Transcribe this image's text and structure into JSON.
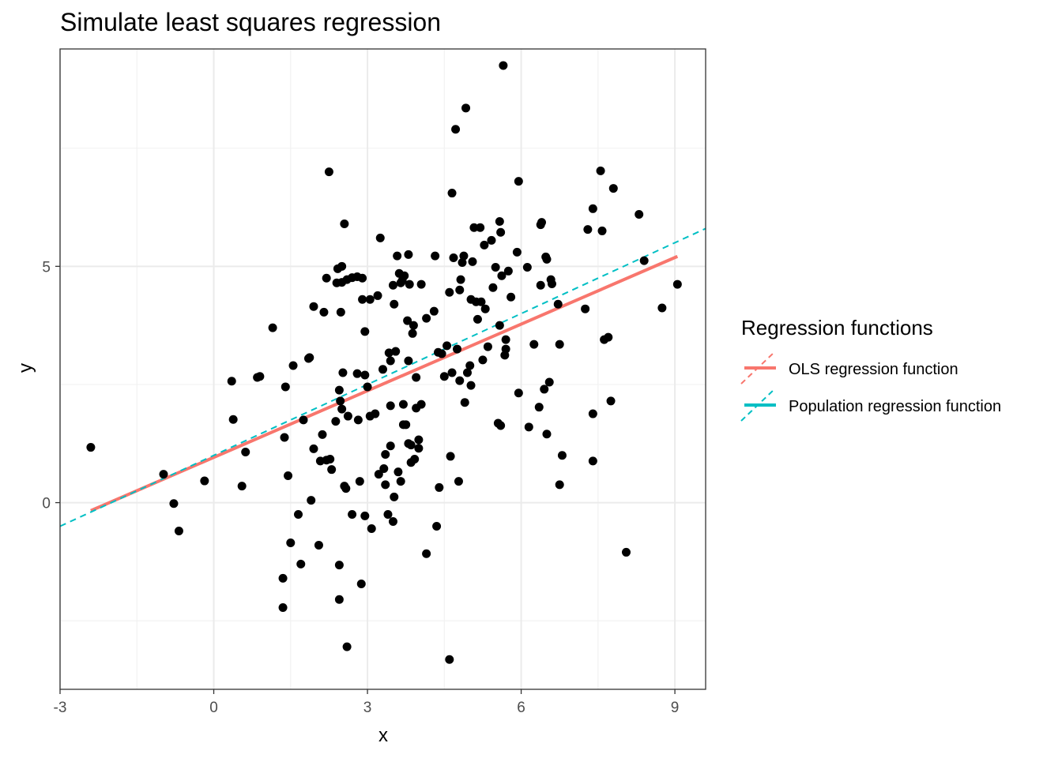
{
  "chart_data": {
    "type": "scatter",
    "title": "Simulate least squares regression",
    "xlabel": "x",
    "ylabel": "y",
    "xlim": [
      -3,
      9.6
    ],
    "ylim": [
      -3.95,
      9.6
    ],
    "x_ticks": [
      -3,
      0,
      3,
      6,
      9
    ],
    "x_tick_labels": [
      "-3",
      "0",
      "3",
      "6",
      "9"
    ],
    "y_ticks": [
      0,
      5
    ],
    "y_tick_labels": [
      "0",
      "5"
    ],
    "x_minor_ticks": [
      -1.5,
      1.5,
      4.5,
      7.5
    ],
    "y_minor_ticks": [
      -2.5,
      2.5,
      7.5
    ],
    "grid": true,
    "legend": {
      "title": "Regression functions",
      "position": "right",
      "entries": [
        {
          "label": "OLS regression function",
          "color": "#F8766D"
        },
        {
          "label": "Population regression function",
          "color": "#00BFC4"
        }
      ]
    },
    "lines": [
      {
        "name": "OLS regression function",
        "color": "#F8766D",
        "style": "solid",
        "x": [
          -2.4,
          9.05
        ],
        "y": [
          -0.17,
          5.21
        ]
      },
      {
        "name": "Population regression function",
        "color": "#00BFC4",
        "style": "dashed",
        "x": [
          -3.0,
          9.6
        ],
        "y": [
          -0.5,
          5.8
        ]
      }
    ],
    "points": [
      [
        -2.4,
        1.17
      ],
      [
        -0.98,
        0.6
      ],
      [
        -0.78,
        -0.02
      ],
      [
        -0.68,
        -0.6
      ],
      [
        -0.18,
        0.46
      ],
      [
        0.35,
        2.57
      ],
      [
        0.38,
        1.76
      ],
      [
        0.55,
        0.35
      ],
      [
        0.62,
        1.07
      ],
      [
        0.85,
        2.65
      ],
      [
        0.9,
        2.67
      ],
      [
        1.15,
        3.7
      ],
      [
        1.38,
        1.38
      ],
      [
        1.35,
        -1.6
      ],
      [
        1.35,
        -2.22
      ],
      [
        1.4,
        2.45
      ],
      [
        1.45,
        0.57
      ],
      [
        1.5,
        -0.85
      ],
      [
        1.55,
        2.9
      ],
      [
        1.65,
        -0.25
      ],
      [
        1.7,
        -1.3
      ],
      [
        1.75,
        1.75
      ],
      [
        1.85,
        3.05
      ],
      [
        1.87,
        3.07
      ],
      [
        1.9,
        0.05
      ],
      [
        1.95,
        4.15
      ],
      [
        1.95,
        1.14
      ],
      [
        2.05,
        -0.9
      ],
      [
        2.08,
        0.88
      ],
      [
        2.12,
        1.44
      ],
      [
        2.15,
        4.03
      ],
      [
        2.2,
        0.9
      ],
      [
        2.2,
        4.75
      ],
      [
        2.25,
        7.0
      ],
      [
        2.27,
        0.92
      ],
      [
        2.3,
        0.7
      ],
      [
        2.38,
        1.72
      ],
      [
        2.4,
        4.65
      ],
      [
        2.42,
        4.95
      ],
      [
        2.45,
        2.38
      ],
      [
        2.45,
        -2.05
      ],
      [
        2.45,
        -1.32
      ],
      [
        2.47,
        2.15
      ],
      [
        2.5,
        4.66
      ],
      [
        2.5,
        5.0
      ],
      [
        2.48,
        4.03
      ],
      [
        2.52,
        2.75
      ],
      [
        2.5,
        1.98
      ],
      [
        2.55,
        0.35
      ],
      [
        2.55,
        5.9
      ],
      [
        2.58,
        0.3
      ],
      [
        2.6,
        -3.05
      ],
      [
        2.6,
        4.72
      ],
      [
        2.62,
        1.83
      ],
      [
        2.7,
        4.76
      ],
      [
        2.7,
        -0.25
      ],
      [
        2.8,
        2.73
      ],
      [
        2.8,
        4.78
      ],
      [
        2.82,
        1.75
      ],
      [
        2.85,
        0.45
      ],
      [
        2.88,
        -1.72
      ],
      [
        2.9,
        4.75
      ],
      [
        2.9,
        4.3
      ],
      [
        2.95,
        2.7
      ],
      [
        2.95,
        3.62
      ],
      [
        2.95,
        -0.28
      ],
      [
        3.0,
        2.45
      ],
      [
        3.05,
        4.3
      ],
      [
        3.05,
        1.83
      ],
      [
        3.08,
        -0.55
      ],
      [
        3.15,
        1.88
      ],
      [
        3.2,
        4.38
      ],
      [
        3.22,
        0.6
      ],
      [
        3.25,
        5.6
      ],
      [
        3.3,
        2.82
      ],
      [
        3.32,
        0.72
      ],
      [
        3.35,
        1.02
      ],
      [
        3.35,
        0.38
      ],
      [
        3.4,
        -0.25
      ],
      [
        3.42,
        3.17
      ],
      [
        3.45,
        3.0
      ],
      [
        3.45,
        2.05
      ],
      [
        3.45,
        1.2
      ],
      [
        3.5,
        -0.4
      ],
      [
        3.5,
        4.6
      ],
      [
        3.52,
        0.12
      ],
      [
        3.52,
        4.2
      ],
      [
        3.55,
        3.2
      ],
      [
        3.58,
        5.22
      ],
      [
        3.6,
        0.65
      ],
      [
        3.62,
        4.85
      ],
      [
        3.65,
        4.65
      ],
      [
        3.65,
        0.45
      ],
      [
        3.68,
        4.7
      ],
      [
        3.7,
        1.65
      ],
      [
        3.7,
        2.08
      ],
      [
        3.72,
        4.8
      ],
      [
        3.75,
        1.65
      ],
      [
        3.78,
        3.85
      ],
      [
        3.8,
        5.25
      ],
      [
        3.8,
        3.0
      ],
      [
        3.82,
        4.62
      ],
      [
        3.8,
        1.25
      ],
      [
        3.85,
        0.85
      ],
      [
        3.85,
        1.22
      ],
      [
        3.88,
        3.58
      ],
      [
        3.9,
        3.75
      ],
      [
        3.92,
        0.92
      ],
      [
        3.95,
        2.65
      ],
      [
        3.95,
        2.0
      ],
      [
        4.0,
        1.33
      ],
      [
        4.0,
        1.15
      ],
      [
        4.05,
        4.62
      ],
      [
        4.05,
        2.08
      ],
      [
        4.15,
        3.9
      ],
      [
        4.15,
        -1.08
      ],
      [
        4.3,
        4.05
      ],
      [
        4.32,
        5.22
      ],
      [
        4.35,
        -0.5
      ],
      [
        4.38,
        3.18
      ],
      [
        4.4,
        0.32
      ],
      [
        4.45,
        3.15
      ],
      [
        4.5,
        2.67
      ],
      [
        4.55,
        3.32
      ],
      [
        4.6,
        4.45
      ],
      [
        4.6,
        -3.32
      ],
      [
        4.62,
        0.98
      ],
      [
        4.65,
        6.55
      ],
      [
        4.65,
        2.75
      ],
      [
        4.68,
        5.18
      ],
      [
        4.72,
        7.9
      ],
      [
        4.75,
        3.25
      ],
      [
        4.78,
        0.45
      ],
      [
        4.8,
        4.5
      ],
      [
        4.8,
        2.58
      ],
      [
        4.82,
        4.72
      ],
      [
        4.85,
        5.08
      ],
      [
        4.88,
        5.22
      ],
      [
        4.9,
        2.12
      ],
      [
        4.92,
        8.35
      ],
      [
        4.95,
        2.75
      ],
      [
        5.0,
        2.9
      ],
      [
        5.02,
        4.3
      ],
      [
        5.02,
        2.48
      ],
      [
        5.05,
        5.1
      ],
      [
        5.08,
        5.82
      ],
      [
        5.12,
        4.25
      ],
      [
        5.15,
        3.88
      ],
      [
        5.2,
        5.82
      ],
      [
        5.22,
        4.25
      ],
      [
        5.25,
        3.02
      ],
      [
        5.28,
        5.45
      ],
      [
        5.3,
        4.1
      ],
      [
        5.35,
        3.3
      ],
      [
        5.42,
        5.55
      ],
      [
        5.45,
        4.55
      ],
      [
        5.5,
        4.98
      ],
      [
        5.55,
        1.68
      ],
      [
        5.58,
        3.75
      ],
      [
        5.58,
        5.95
      ],
      [
        5.6,
        1.63
      ],
      [
        5.6,
        5.72
      ],
      [
        5.62,
        4.8
      ],
      [
        5.65,
        9.25
      ],
      [
        5.68,
        3.12
      ],
      [
        5.7,
        3.25
      ],
      [
        5.7,
        3.45
      ],
      [
        5.75,
        4.9
      ],
      [
        5.8,
        4.35
      ],
      [
        5.92,
        5.3
      ],
      [
        5.95,
        6.8
      ],
      [
        5.95,
        2.32
      ],
      [
        6.12,
        4.98
      ],
      [
        6.15,
        1.6
      ],
      [
        6.25,
        3.35
      ],
      [
        6.35,
        2.02
      ],
      [
        6.38,
        4.6
      ],
      [
        6.38,
        5.88
      ],
      [
        6.4,
        5.93
      ],
      [
        6.45,
        2.4
      ],
      [
        6.48,
        5.2
      ],
      [
        6.5,
        5.15
      ],
      [
        6.5,
        1.45
      ],
      [
        6.55,
        2.55
      ],
      [
        6.58,
        4.72
      ],
      [
        6.6,
        4.63
      ],
      [
        6.72,
        4.2
      ],
      [
        6.75,
        0.38
      ],
      [
        6.75,
        3.35
      ],
      [
        6.8,
        1.0
      ],
      [
        7.25,
        4.1
      ],
      [
        7.3,
        5.78
      ],
      [
        7.4,
        6.22
      ],
      [
        7.4,
        1.88
      ],
      [
        7.4,
        0.88
      ],
      [
        7.55,
        7.02
      ],
      [
        7.58,
        5.75
      ],
      [
        7.62,
        3.45
      ],
      [
        7.7,
        3.5
      ],
      [
        7.75,
        2.15
      ],
      [
        7.8,
        6.65
      ],
      [
        8.05,
        -1.05
      ],
      [
        8.3,
        6.1
      ],
      [
        8.4,
        5.12
      ],
      [
        8.75,
        4.12
      ],
      [
        9.05,
        4.62
      ]
    ]
  }
}
